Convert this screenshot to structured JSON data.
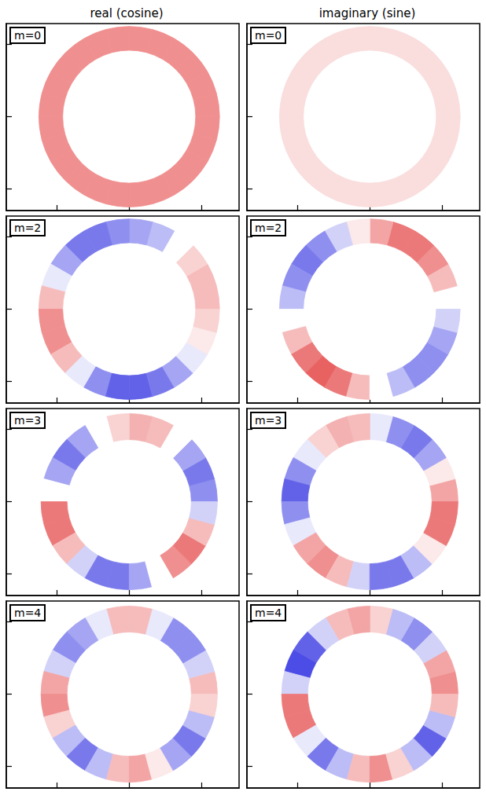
{
  "column_titles": [
    "real (cosine)",
    "imaginary (sine)"
  ],
  "chart_data": [
    {
      "type": "polar_heatmap",
      "title": "m=0",
      "xlim": [
        -170,
        152
      ],
      "ylim": [
        -130,
        129
      ],
      "xticks": [
        -100,
        0,
        100
      ],
      "yticks": [
        -100,
        0,
        100
      ],
      "tick_labels": false,
      "center": [
        0,
        0
      ],
      "radii": [
        92,
        125
      ],
      "color_range": [
        -1,
        1
      ],
      "angles": [
        0,
        15,
        30,
        45,
        60,
        75,
        90,
        105,
        120,
        135,
        150,
        165,
        180,
        195,
        210,
        225,
        240,
        255,
        270,
        285,
        300,
        315,
        330,
        345
      ],
      "values": [
        0.5,
        0.5,
        0.5,
        0.5,
        0.5,
        0.5,
        0.5,
        0.5,
        0.5,
        0.5,
        0.5,
        0.5,
        0.5,
        0.5,
        0.5,
        0.5,
        0.5,
        0.5,
        0.5,
        0.5,
        0.5,
        0.5,
        0.5,
        0.5
      ]
    },
    {
      "type": "polar_heatmap",
      "title": "m=0",
      "xlim": [
        -170,
        152
      ],
      "ylim": [
        -130,
        129
      ],
      "xticks": [
        -100,
        0,
        100
      ],
      "yticks": [
        -100,
        0,
        100
      ],
      "tick_labels": false,
      "center": [
        0,
        0
      ],
      "radii": [
        92,
        125
      ],
      "color_range": [
        -1,
        1
      ],
      "angles": [
        0,
        15,
        30,
        45,
        60,
        75,
        90,
        105,
        120,
        135,
        150,
        165,
        180,
        195,
        210,
        225,
        240,
        255,
        270,
        285,
        300,
        315,
        330,
        345
      ],
      "values": [
        0.15,
        0.15,
        0.15,
        0.15,
        0.15,
        0.15,
        0.15,
        0.15,
        0.15,
        0.15,
        0.15,
        0.15,
        0.15,
        0.15,
        0.15,
        0.15,
        0.15,
        0.15,
        0.15,
        0.15,
        0.15,
        0.15,
        0.15,
        0.15
      ]
    },
    {
      "type": "polar_heatmap",
      "title": "m=2",
      "xlim": [
        -170,
        152
      ],
      "ylim": [
        -130,
        129
      ],
      "xticks": [
        -100,
        0,
        100
      ],
      "yticks": [
        -100,
        0,
        100
      ],
      "tick_labels": false,
      "center": [
        0,
        0
      ],
      "radii": [
        92,
        125
      ],
      "color_range": [
        -1,
        1
      ],
      "angles": [
        0,
        15,
        30,
        45,
        60,
        75,
        90,
        105,
        120,
        135,
        150,
        165,
        180,
        195,
        210,
        225,
        240,
        255,
        270,
        285,
        300,
        315,
        330,
        345
      ],
      "values": [
        0.3,
        0.3,
        0.2,
        0,
        -0.3,
        -0.4,
        -0.5,
        -0.6,
        -0.6,
        -0.4,
        -0.1,
        0.3,
        0.5,
        0.5,
        0.3,
        -0.1,
        -0.5,
        -0.7,
        -0.7,
        -0.6,
        -0.4,
        -0.1,
        0.1,
        0.2
      ]
    },
    {
      "type": "polar_heatmap",
      "title": "m=2",
      "xlim": [
        -170,
        152
      ],
      "ylim": [
        -130,
        129
      ],
      "xticks": [
        -100,
        0,
        100
      ],
      "yticks": [
        -100,
        0,
        100
      ],
      "tick_labels": false,
      "center": [
        0,
        0
      ],
      "radii": [
        92,
        125
      ],
      "color_range": [
        -1,
        1
      ],
      "angles": [
        0,
        15,
        30,
        45,
        60,
        75,
        90,
        105,
        120,
        135,
        150,
        165,
        180,
        195,
        210,
        225,
        240,
        255,
        270,
        285,
        300,
        315,
        330,
        345
      ],
      "values": [
        0,
        0.3,
        0.5,
        0.6,
        0.6,
        0.4,
        0.1,
        -0.2,
        -0.5,
        -0.6,
        -0.5,
        -0.3,
        0,
        0.3,
        0.6,
        0.7,
        0.6,
        0.3,
        0,
        -0.3,
        -0.5,
        -0.5,
        -0.4,
        -0.2
      ]
    },
    {
      "type": "polar_heatmap",
      "title": "m=3",
      "xlim": [
        -170,
        152
      ],
      "ylim": [
        -130,
        129
      ],
      "xticks": [
        -100,
        0,
        100
      ],
      "yticks": [
        -100,
        0,
        100
      ],
      "tick_labels": false,
      "center": [
        0,
        0
      ],
      "radii": [
        86,
        122
      ],
      "color_range": [
        -1,
        1
      ],
      "angles": [
        0,
        15,
        30,
        45,
        60,
        75,
        90,
        105,
        120,
        135,
        150,
        165,
        180,
        195,
        210,
        225,
        240,
        255,
        270,
        285,
        300,
        315,
        330,
        345
      ],
      "values": [
        -0.5,
        -0.6,
        -0.4,
        0,
        0.3,
        0.35,
        0.2,
        0,
        -0.4,
        -0.6,
        -0.4,
        0,
        0.6,
        0.6,
        0.3,
        -0.2,
        -0.6,
        -0.6,
        -0.4,
        0,
        0.5,
        0.6,
        0.3,
        -0.2
      ]
    },
    {
      "type": "polar_heatmap",
      "title": "m=3",
      "xlim": [
        -170,
        152
      ],
      "ylim": [
        -130,
        129
      ],
      "xticks": [
        -100,
        0,
        100
      ],
      "yticks": [
        -100,
        0,
        100
      ],
      "tick_labels": false,
      "center": [
        0,
        0
      ],
      "radii": [
        86,
        122
      ],
      "color_range": [
        -1,
        1
      ],
      "angles": [
        0,
        15,
        30,
        45,
        60,
        75,
        90,
        105,
        120,
        135,
        150,
        165,
        180,
        195,
        210,
        225,
        240,
        255,
        270,
        285,
        300,
        315,
        330,
        345
      ],
      "values": [
        0.4,
        0.1,
        -0.4,
        -0.6,
        -0.5,
        -0.1,
        0.3,
        0.35,
        0.2,
        -0.1,
        -0.5,
        -0.7,
        -0.5,
        -0.1,
        0.4,
        0.5,
        0.3,
        -0.2,
        -0.6,
        -0.6,
        -0.3,
        0.1,
        0.6,
        0.6
      ]
    },
    {
      "type": "polar_heatmap",
      "title": "m=4",
      "xlim": [
        -170,
        152
      ],
      "ylim": [
        -130,
        129
      ],
      "xticks": [
        -100,
        0,
        100
      ],
      "yticks": [
        -100,
        0,
        100
      ],
      "tick_labels": false,
      "center": [
        0,
        0
      ],
      "radii": [
        86,
        122
      ],
      "color_range": [
        -1,
        1
      ],
      "angles": [
        0,
        15,
        30,
        45,
        60,
        75,
        90,
        105,
        120,
        135,
        150,
        165,
        180,
        195,
        210,
        225,
        240,
        255,
        270,
        285,
        300,
        315,
        330,
        345
      ],
      "values": [
        0.3,
        -0.2,
        -0.5,
        -0.5,
        -0.1,
        0.3,
        0.3,
        -0.1,
        -0.4,
        -0.5,
        -0.2,
        0.4,
        0.5,
        0.2,
        -0.3,
        -0.6,
        -0.3,
        0.3,
        0.4,
        0.1,
        -0.4,
        -0.6,
        -0.3,
        0.2
      ]
    },
    {
      "type": "polar_heatmap",
      "title": "m=4",
      "xlim": [
        -170,
        152
      ],
      "ylim": [
        -130,
        129
      ],
      "xticks": [
        -100,
        0,
        100
      ],
      "yticks": [
        -100,
        0,
        100
      ],
      "tick_labels": false,
      "center": [
        0,
        0
      ],
      "radii": [
        86,
        122
      ],
      "color_range": [
        -1,
        1
      ],
      "angles": [
        0,
        15,
        30,
        45,
        60,
        75,
        90,
        105,
        120,
        135,
        150,
        165,
        180,
        195,
        210,
        225,
        240,
        255,
        270,
        285,
        300,
        315,
        330,
        345
      ],
      "values": [
        0.5,
        0.4,
        -0.2,
        -0.5,
        -0.3,
        0.2,
        0.4,
        0.3,
        -0.2,
        -0.7,
        -0.8,
        -0.2,
        0.6,
        0.6,
        -0.1,
        -0.6,
        -0.3,
        0.3,
        0.5,
        0.2,
        -0.3,
        -0.7,
        -0.3,
        0.3
      ]
    }
  ]
}
